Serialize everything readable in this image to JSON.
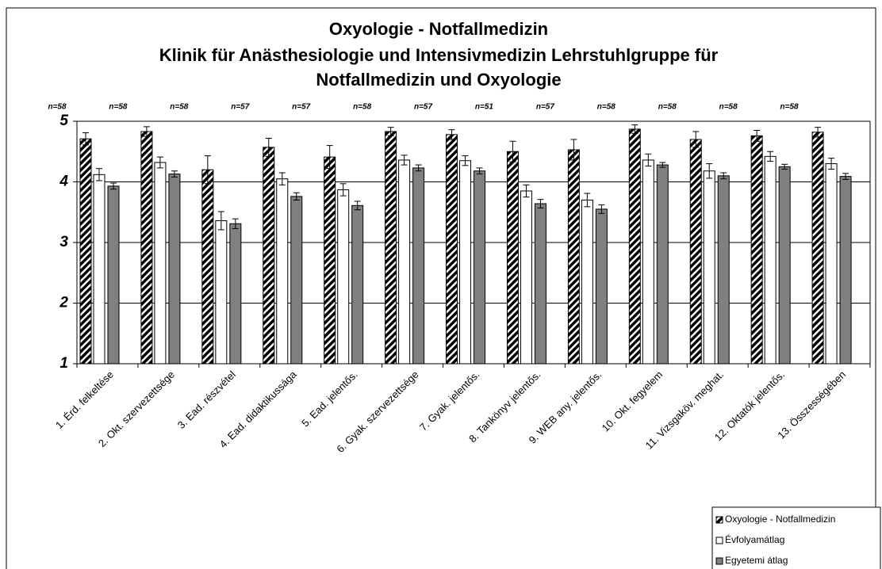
{
  "chart_data": {
    "type": "bar",
    "title_lines": [
      "Oxyologie - Notfallmedizin",
      "Klinik für Anästhesiologie und Intensivmedizin Lehrstuhlgruppe für",
      "Notfallmedizin und Oxyologie"
    ],
    "categories": [
      "1. Érd. felkeltése",
      "2. Okt. szervezettsége",
      "3. Ead. részvétel",
      "4. Ead. didaktikussága",
      "5. Ead. jelentős.",
      "6. Gyak. szervezettsége",
      "7. Gyak. jelentős.",
      "8. Tankönyv jelentős.",
      "9. WEB any. jelentős.",
      "10. Okt. fegyelem",
      "11. Vizsgaköv. meghat.",
      "12. Oktatók jelentős.",
      "13. Összességében"
    ],
    "n_labels": [
      "n=58",
      "n=58",
      "n=58",
      "n=57",
      "n=57",
      "n=58",
      "n=57",
      "n=51",
      "n=57",
      "n=58",
      "n=58",
      "n=58",
      "n=58"
    ],
    "series": [
      {
        "name": "Oxyologie - Notfallmedizin",
        "color": "#000000",
        "hatch": true,
        "values": [
          4.71,
          4.83,
          4.2,
          4.57,
          4.41,
          4.83,
          4.78,
          4.5,
          4.53,
          4.87,
          4.7,
          4.76,
          4.82
        ],
        "errors": [
          0.1,
          0.08,
          0.23,
          0.15,
          0.19,
          0.07,
          0.08,
          0.17,
          0.17,
          0.07,
          0.13,
          0.09,
          0.08
        ]
      },
      {
        "name": "Évfolyamátlag",
        "color": "#ffffff",
        "values": [
          4.12,
          4.32,
          3.36,
          4.05,
          3.87,
          4.36,
          4.35,
          3.85,
          3.7,
          4.36,
          4.18,
          4.42,
          4.3
        ],
        "errors": [
          0.1,
          0.09,
          0.15,
          0.1,
          0.1,
          0.08,
          0.08,
          0.1,
          0.11,
          0.1,
          0.12,
          0.08,
          0.09
        ]
      },
      {
        "name": "Egyetemi átlag",
        "color": "#808080",
        "values": [
          3.93,
          4.13,
          3.31,
          3.76,
          3.61,
          4.23,
          4.18,
          3.64,
          3.55,
          4.28,
          4.1,
          4.25,
          4.09
        ],
        "errors": [
          0.05,
          0.05,
          0.08,
          0.06,
          0.07,
          0.05,
          0.05,
          0.07,
          0.07,
          0.04,
          0.05,
          0.04,
          0.05
        ]
      }
    ],
    "ylim": [
      1,
      5
    ],
    "yticks": [
      1,
      2,
      3,
      4,
      5
    ],
    "grid": true,
    "legend": "bottom-right"
  }
}
